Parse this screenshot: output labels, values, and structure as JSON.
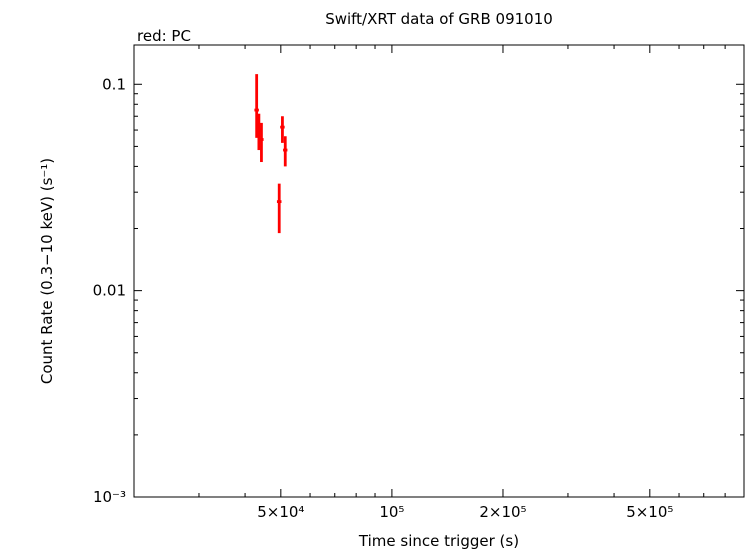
{
  "title": "Swift/XRT data of GRB 091010",
  "legend": "red: PC",
  "xlabel": "Time since trigger (s)",
  "ylabel": "Count Rate (0.3−10 keV) (s⁻¹)",
  "colors": {
    "pc_mode": "#ff0000",
    "axis": "#000000",
    "background": "#ffffff"
  },
  "chart_data": {
    "type": "scatter",
    "x_scale": "log",
    "y_scale": "log",
    "xlim": [
      20000,
      900000
    ],
    "ylim": [
      0.001,
      0.155
    ],
    "grid": false,
    "legend_position": "top-left",
    "x_ticks": [
      {
        "value": 50000,
        "label": "5×10⁴"
      },
      {
        "value": 100000,
        "label": "10⁵"
      },
      {
        "value": 200000,
        "label": "2×10⁵"
      },
      {
        "value": 500000,
        "label": "5×10⁵"
      }
    ],
    "y_ticks": [
      {
        "value": 0.1,
        "label": "0.1"
      },
      {
        "value": 0.01,
        "label": "0.01"
      },
      {
        "value": 0.001,
        "label": "10⁻³"
      }
    ],
    "series": [
      {
        "name": "PC",
        "color": "#ff0000",
        "marker": "error-bar-cross",
        "points": [
          {
            "t": 43000,
            "t_err": 600,
            "rate": 0.075,
            "rate_err_up": 0.037,
            "rate_err_down": 0.02
          },
          {
            "t": 43600,
            "t_err": 600,
            "rate": 0.06,
            "rate_err_up": 0.012,
            "rate_err_down": 0.012
          },
          {
            "t": 44300,
            "t_err": 600,
            "rate": 0.054,
            "rate_err_up": 0.011,
            "rate_err_down": 0.012
          },
          {
            "t": 50500,
            "t_err": 700,
            "rate": 0.062,
            "rate_err_up": 0.008,
            "rate_err_down": 0.01
          },
          {
            "t": 51400,
            "t_err": 700,
            "rate": 0.048,
            "rate_err_up": 0.008,
            "rate_err_down": 0.008
          },
          {
            "t": 49500,
            "t_err": 700,
            "rate": 0.027,
            "rate_err_up": 0.006,
            "rate_err_down": 0.008
          }
        ]
      }
    ]
  }
}
